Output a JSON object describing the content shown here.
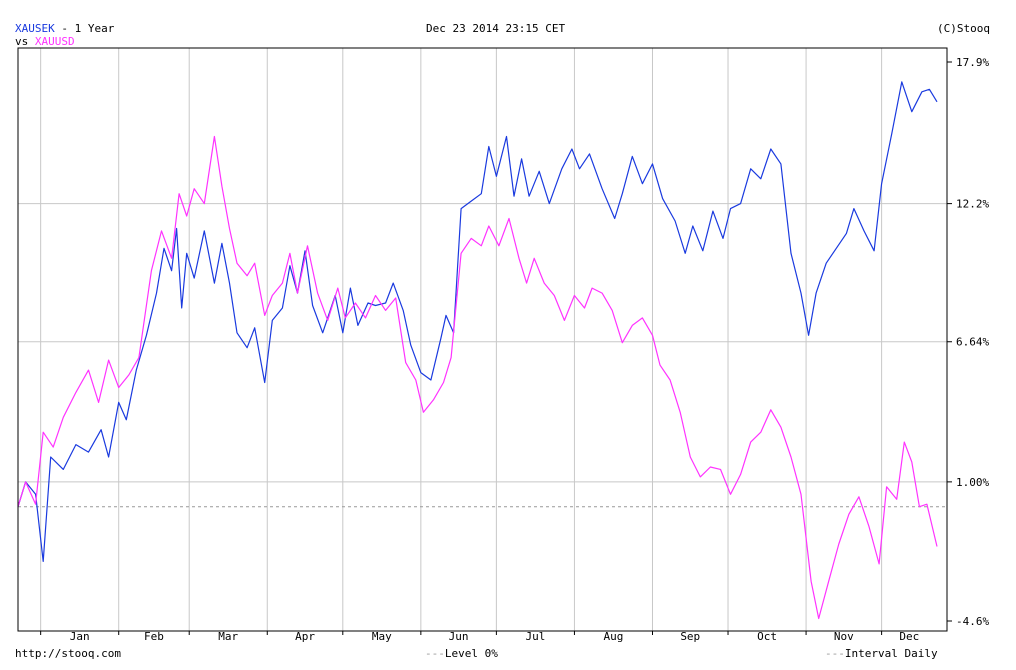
{
  "header": {
    "symbol": "XAUSEK",
    "period": "- 1 Year",
    "vs": "vs",
    "compare_symbol": "XAUUSD",
    "timestamp": "Dec 23 2014 23:15 CET",
    "copyright": "(C)Stooq"
  },
  "footer": {
    "url": "http://stooq.com",
    "level_legend": "Level 0%",
    "interval_legend": "Interval Daily"
  },
  "colors": {
    "primary": "#1a3adf",
    "compare": "#ff33ff",
    "grid": "#c8c8c8",
    "level": "#999999"
  },
  "chart_data": {
    "type": "line",
    "y_unit": "%",
    "y_ticks": [
      "17.9%",
      "12.2%",
      "6.64%",
      "1.00%",
      "-4.6%"
    ],
    "y_tick_values": [
      17.9,
      12.2,
      6.64,
      1.0,
      -4.6
    ],
    "ylim": [
      -4.6,
      17.9
    ],
    "xlim": [
      "2013-12-23",
      "2014-12-23"
    ],
    "x_ticks": [
      "Jan",
      "Feb",
      "Mar",
      "Apr",
      "May",
      "Jun",
      "Jul",
      "Aug",
      "Sep",
      "Oct",
      "Nov",
      "Dec"
    ],
    "level_line": 0,
    "grid": true,
    "series": [
      {
        "name": "XAUSEK",
        "color": "#1a3adf",
        "points": [
          [
            "2013-12-23",
            0
          ],
          [
            "2013-12-26",
            1.0
          ],
          [
            "2013-12-30",
            0.5
          ],
          [
            "2014-01-02",
            -2.2
          ],
          [
            "2014-01-05",
            2.0
          ],
          [
            "2014-01-10",
            1.5
          ],
          [
            "2014-01-15",
            2.5
          ],
          [
            "2014-01-20",
            2.2
          ],
          [
            "2014-01-25",
            3.1
          ],
          [
            "2014-01-28",
            2.0
          ],
          [
            "2014-02-01",
            4.2
          ],
          [
            "2014-02-04",
            3.5
          ],
          [
            "2014-02-08",
            5.5
          ],
          [
            "2014-02-12",
            6.9
          ],
          [
            "2014-02-16",
            8.6
          ],
          [
            "2014-02-19",
            10.4
          ],
          [
            "2014-02-22",
            9.5
          ],
          [
            "2014-02-24",
            11.2
          ],
          [
            "2014-02-26",
            8.0
          ],
          [
            "2014-02-28",
            10.2
          ],
          [
            "2014-03-03",
            9.2
          ],
          [
            "2014-03-07",
            11.1
          ],
          [
            "2014-03-11",
            9.0
          ],
          [
            "2014-03-14",
            10.6
          ],
          [
            "2014-03-17",
            9.0
          ],
          [
            "2014-03-20",
            7.0
          ],
          [
            "2014-03-24",
            6.4
          ],
          [
            "2014-03-27",
            7.2
          ],
          [
            "2014-03-31",
            5.0
          ],
          [
            "2014-04-03",
            7.5
          ],
          [
            "2014-04-07",
            8.0
          ],
          [
            "2014-04-10",
            9.7
          ],
          [
            "2014-04-13",
            8.6
          ],
          [
            "2014-04-16",
            10.3
          ],
          [
            "2014-04-19",
            8.1
          ],
          [
            "2014-04-23",
            7.0
          ],
          [
            "2014-04-28",
            8.5
          ],
          [
            "2014-05-01",
            7.0
          ],
          [
            "2014-05-04",
            8.8
          ],
          [
            "2014-05-07",
            7.3
          ],
          [
            "2014-05-11",
            8.2
          ],
          [
            "2014-05-14",
            8.1
          ],
          [
            "2014-05-18",
            8.2
          ],
          [
            "2014-05-21",
            9.0
          ],
          [
            "2014-05-25",
            7.9
          ],
          [
            "2014-05-28",
            6.5
          ],
          [
            "2014-06-01",
            5.4
          ],
          [
            "2014-06-05",
            5.1
          ],
          [
            "2014-06-09",
            6.8
          ],
          [
            "2014-06-11",
            7.7
          ],
          [
            "2014-06-14",
            7.0
          ],
          [
            "2014-06-17",
            12.0
          ],
          [
            "2014-06-21",
            12.3
          ],
          [
            "2014-06-25",
            12.6
          ],
          [
            "2014-06-28",
            14.5
          ],
          [
            "2014-07-01",
            13.3
          ],
          [
            "2014-07-05",
            14.9
          ],
          [
            "2014-07-08",
            12.5
          ],
          [
            "2014-07-11",
            14.0
          ],
          [
            "2014-07-14",
            12.5
          ],
          [
            "2014-07-18",
            13.5
          ],
          [
            "2014-07-22",
            12.2
          ],
          [
            "2014-07-27",
            13.6
          ],
          [
            "2014-07-31",
            14.4
          ],
          [
            "2014-08-03",
            13.6
          ],
          [
            "2014-08-07",
            14.2
          ],
          [
            "2014-08-12",
            12.8
          ],
          [
            "2014-08-17",
            11.6
          ],
          [
            "2014-08-20",
            12.6
          ],
          [
            "2014-08-24",
            14.1
          ],
          [
            "2014-08-28",
            13.0
          ],
          [
            "2014-09-01",
            13.8
          ],
          [
            "2014-09-05",
            12.4
          ],
          [
            "2014-09-10",
            11.5
          ],
          [
            "2014-09-14",
            10.2
          ],
          [
            "2014-09-17",
            11.3
          ],
          [
            "2014-09-21",
            10.3
          ],
          [
            "2014-09-25",
            11.9
          ],
          [
            "2014-09-29",
            10.8
          ],
          [
            "2014-10-02",
            12.0
          ],
          [
            "2014-10-06",
            12.2
          ],
          [
            "2014-10-10",
            13.6
          ],
          [
            "2014-10-14",
            13.2
          ],
          [
            "2014-10-18",
            14.4
          ],
          [
            "2014-10-22",
            13.8
          ],
          [
            "2014-10-26",
            10.2
          ],
          [
            "2014-10-30",
            8.6
          ],
          [
            "2014-11-02",
            6.9
          ],
          [
            "2014-11-05",
            8.6
          ],
          [
            "2014-11-09",
            9.8
          ],
          [
            "2014-11-13",
            10.4
          ],
          [
            "2014-11-17",
            11.0
          ],
          [
            "2014-11-20",
            12.0
          ],
          [
            "2014-11-24",
            11.1
          ],
          [
            "2014-11-28",
            10.3
          ],
          [
            "2014-12-01",
            13.0
          ],
          [
            "2014-12-05",
            15.0
          ],
          [
            "2014-12-09",
            17.1
          ],
          [
            "2014-12-13",
            15.9
          ],
          [
            "2014-12-17",
            16.7
          ],
          [
            "2014-12-20",
            16.8
          ],
          [
            "2014-12-23",
            16.3
          ]
        ]
      },
      {
        "name": "XAUUSD",
        "color": "#ff33ff",
        "points": [
          [
            "2013-12-23",
            0
          ],
          [
            "2013-12-26",
            1.0
          ],
          [
            "2013-12-30",
            0.1
          ],
          [
            "2014-01-02",
            3.0
          ],
          [
            "2014-01-06",
            2.4
          ],
          [
            "2014-01-10",
            3.6
          ],
          [
            "2014-01-15",
            4.6
          ],
          [
            "2014-01-20",
            5.5
          ],
          [
            "2014-01-24",
            4.2
          ],
          [
            "2014-01-28",
            5.9
          ],
          [
            "2014-02-01",
            4.8
          ],
          [
            "2014-02-05",
            5.3
          ],
          [
            "2014-02-09",
            6.0
          ],
          [
            "2014-02-14",
            9.5
          ],
          [
            "2014-02-18",
            11.1
          ],
          [
            "2014-02-22",
            10.0
          ],
          [
            "2014-02-25",
            12.6
          ],
          [
            "2014-02-28",
            11.7
          ],
          [
            "2014-03-03",
            12.8
          ],
          [
            "2014-03-07",
            12.2
          ],
          [
            "2014-03-11",
            14.9
          ],
          [
            "2014-03-14",
            12.9
          ],
          [
            "2014-03-17",
            11.2
          ],
          [
            "2014-03-20",
            9.8
          ],
          [
            "2014-03-24",
            9.3
          ],
          [
            "2014-03-27",
            9.8
          ],
          [
            "2014-03-31",
            7.7
          ],
          [
            "2014-04-03",
            8.5
          ],
          [
            "2014-04-07",
            9.0
          ],
          [
            "2014-04-10",
            10.2
          ],
          [
            "2014-04-13",
            8.6
          ],
          [
            "2014-04-17",
            10.5
          ],
          [
            "2014-04-21",
            8.6
          ],
          [
            "2014-04-25",
            7.5
          ],
          [
            "2014-04-29",
            8.8
          ],
          [
            "2014-05-02",
            7.6
          ],
          [
            "2014-05-06",
            8.2
          ],
          [
            "2014-05-10",
            7.6
          ],
          [
            "2014-05-14",
            8.5
          ],
          [
            "2014-05-18",
            7.9
          ],
          [
            "2014-05-22",
            8.4
          ],
          [
            "2014-05-26",
            5.8
          ],
          [
            "2014-05-30",
            5.1
          ],
          [
            "2014-06-02",
            3.8
          ],
          [
            "2014-06-06",
            4.3
          ],
          [
            "2014-06-10",
            5.0
          ],
          [
            "2014-06-13",
            6.0
          ],
          [
            "2014-06-17",
            10.2
          ],
          [
            "2014-06-21",
            10.8
          ],
          [
            "2014-06-25",
            10.5
          ],
          [
            "2014-06-28",
            11.3
          ],
          [
            "2014-07-02",
            10.5
          ],
          [
            "2014-07-06",
            11.6
          ],
          [
            "2014-07-10",
            10.0
          ],
          [
            "2014-07-13",
            9.0
          ],
          [
            "2014-07-16",
            10.0
          ],
          [
            "2014-07-20",
            9.0
          ],
          [
            "2014-07-24",
            8.5
          ],
          [
            "2014-07-28",
            7.5
          ],
          [
            "2014-08-01",
            8.5
          ],
          [
            "2014-08-05",
            8.0
          ],
          [
            "2014-08-08",
            8.8
          ],
          [
            "2014-08-12",
            8.6
          ],
          [
            "2014-08-16",
            7.9
          ],
          [
            "2014-08-20",
            6.6
          ],
          [
            "2014-08-24",
            7.3
          ],
          [
            "2014-08-28",
            7.6
          ],
          [
            "2014-09-01",
            6.9
          ],
          [
            "2014-09-04",
            5.7
          ],
          [
            "2014-09-08",
            5.1
          ],
          [
            "2014-09-12",
            3.8
          ],
          [
            "2014-09-16",
            2.0
          ],
          [
            "2014-09-20",
            1.2
          ],
          [
            "2014-09-24",
            1.6
          ],
          [
            "2014-09-28",
            1.5
          ],
          [
            "2014-10-02",
            0.5
          ],
          [
            "2014-10-06",
            1.3
          ],
          [
            "2014-10-10",
            2.6
          ],
          [
            "2014-10-14",
            3.0
          ],
          [
            "2014-10-18",
            3.9
          ],
          [
            "2014-10-22",
            3.2
          ],
          [
            "2014-10-26",
            2.0
          ],
          [
            "2014-10-30",
            0.5
          ],
          [
            "2014-11-03",
            -3.0
          ],
          [
            "2014-11-06",
            -4.5
          ],
          [
            "2014-11-10",
            -3.0
          ],
          [
            "2014-11-14",
            -1.5
          ],
          [
            "2014-11-18",
            -0.3
          ],
          [
            "2014-11-22",
            0.4
          ],
          [
            "2014-11-26",
            -0.8
          ],
          [
            "2014-11-30",
            -2.3
          ],
          [
            "2014-12-03",
            0.8
          ],
          [
            "2014-12-07",
            0.3
          ],
          [
            "2014-12-10",
            2.6
          ],
          [
            "2014-12-13",
            1.8
          ],
          [
            "2014-12-16",
            0.0
          ],
          [
            "2014-12-19",
            0.1
          ],
          [
            "2014-12-23",
            -1.6
          ]
        ]
      }
    ]
  }
}
